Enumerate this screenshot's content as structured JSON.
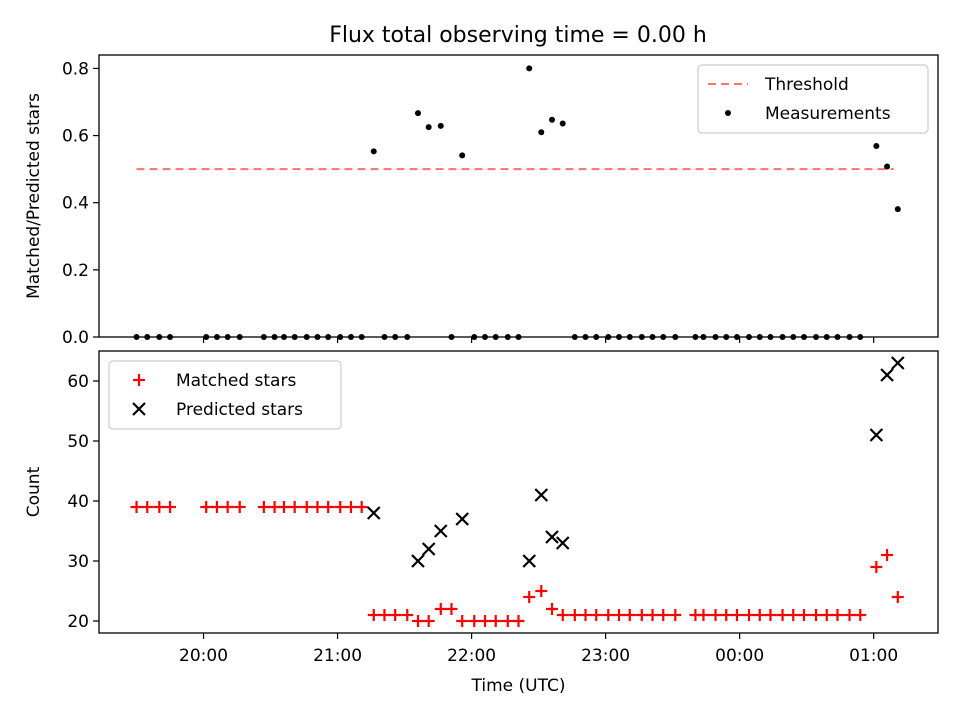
{
  "title": "Flux total observing time = 0.00 h",
  "chart_data": [
    {
      "type": "scatter",
      "ylabel": "Matched/Predicted stars",
      "xlim": [
        19.22,
        25.48
      ],
      "ylim": [
        0,
        0.84
      ],
      "yticks": [
        0.0,
        0.2,
        0.4,
        0.6,
        0.8
      ],
      "ytick_labels": [
        "0.0",
        "0.2",
        "0.4",
        "0.6",
        "0.8"
      ],
      "legend": {
        "placement": "top-right"
      },
      "series": [
        {
          "name": "Threshold",
          "mark": "dashed-line",
          "color": "#ff7070",
          "x": [
            19.5,
            25.15
          ],
          "y": [
            0.5,
            0.5
          ]
        },
        {
          "name": "Measurements",
          "mark": "dot",
          "color": "#000000",
          "x": [
            19.5,
            19.58,
            19.67,
            19.75,
            20.02,
            20.1,
            20.18,
            20.27,
            20.45,
            20.53,
            20.6,
            20.68,
            20.77,
            20.85,
            20.93,
            21.02,
            21.1,
            21.18,
            21.27,
            21.35,
            21.43,
            21.52,
            21.6,
            21.68,
            21.77,
            21.85,
            21.93,
            22.02,
            22.1,
            22.18,
            22.27,
            22.35,
            22.43,
            22.52,
            22.6,
            22.68,
            22.77,
            22.85,
            22.93,
            23.02,
            23.1,
            23.18,
            23.27,
            23.35,
            23.43,
            23.52,
            23.67,
            23.73,
            23.82,
            23.9,
            23.98,
            24.07,
            24.15,
            24.23,
            24.32,
            24.4,
            24.48,
            24.57,
            24.65,
            24.73,
            24.82,
            24.9,
            25.02,
            25.1,
            25.18
          ],
          "y": [
            0,
            0,
            0,
            0,
            0,
            0,
            0,
            0,
            0,
            0,
            0,
            0,
            0,
            0,
            0,
            0,
            0,
            0,
            0.553,
            0,
            0,
            0,
            0.667,
            0.625,
            0.629,
            0,
            0.541,
            0,
            0,
            0,
            0,
            0,
            0.8,
            0.61,
            0.647,
            0.636,
            0,
            0,
            0,
            0,
            0,
            0,
            0,
            0,
            0,
            0,
            0,
            0,
            0,
            0,
            0,
            0,
            0,
            0,
            0,
            0,
            0,
            0,
            0,
            0,
            0,
            0,
            0.569,
            0.508,
            0.381
          ]
        }
      ]
    },
    {
      "type": "scatter",
      "xlabel": "Time (UTC)",
      "ylabel": "Count",
      "xlim": [
        19.22,
        25.48
      ],
      "ylim": [
        18,
        65
      ],
      "yticks": [
        20,
        30,
        40,
        50,
        60
      ],
      "ytick_labels": [
        "20",
        "30",
        "40",
        "50",
        "60"
      ],
      "xticks": [
        20,
        21,
        22,
        23,
        24,
        25
      ],
      "xtick_labels": [
        "20:00",
        "21:00",
        "22:00",
        "23:00",
        "00:00",
        "01:00"
      ],
      "legend": {
        "placement": "top-left"
      },
      "series": [
        {
          "name": "Matched stars",
          "mark": "plus",
          "color": "#ff0000",
          "x": [
            19.5,
            19.58,
            19.67,
            19.75,
            20.02,
            20.1,
            20.18,
            20.27,
            20.45,
            20.53,
            20.6,
            20.68,
            20.77,
            20.85,
            20.93,
            21.02,
            21.1,
            21.18,
            21.27,
            21.35,
            21.43,
            21.52,
            21.6,
            21.68,
            21.77,
            21.85,
            21.93,
            22.02,
            22.1,
            22.18,
            22.27,
            22.35,
            22.43,
            22.52,
            22.6,
            22.68,
            22.77,
            22.85,
            22.93,
            23.02,
            23.1,
            23.18,
            23.27,
            23.35,
            23.43,
            23.52,
            23.67,
            23.73,
            23.82,
            23.9,
            23.98,
            24.07,
            24.15,
            24.23,
            24.32,
            24.4,
            24.48,
            24.57,
            24.65,
            24.73,
            24.82,
            24.9,
            25.02,
            25.1,
            25.18
          ],
          "y": [
            39,
            39,
            39,
            39,
            39,
            39,
            39,
            39,
            39,
            39,
            39,
            39,
            39,
            39,
            39,
            39,
            39,
            39,
            21,
            21,
            21,
            21,
            20,
            20,
            22,
            22,
            20,
            20,
            20,
            20,
            20,
            20,
            24,
            25,
            22,
            21,
            21,
            21,
            21,
            21,
            21,
            21,
            21,
            21,
            21,
            21,
            21,
            21,
            21,
            21,
            21,
            21,
            21,
            21,
            21,
            21,
            21,
            21,
            21,
            21,
            21,
            21,
            29,
            31,
            24
          ]
        },
        {
          "name": "Predicted stars",
          "mark": "x",
          "color": "#000000",
          "x": [
            21.27,
            21.6,
            21.68,
            21.77,
            21.93,
            22.43,
            22.52,
            22.6,
            22.68,
            25.02,
            25.1,
            25.18
          ],
          "y": [
            38,
            30,
            32,
            35,
            37,
            30,
            41,
            34,
            33,
            51,
            61,
            63
          ]
        }
      ]
    }
  ]
}
